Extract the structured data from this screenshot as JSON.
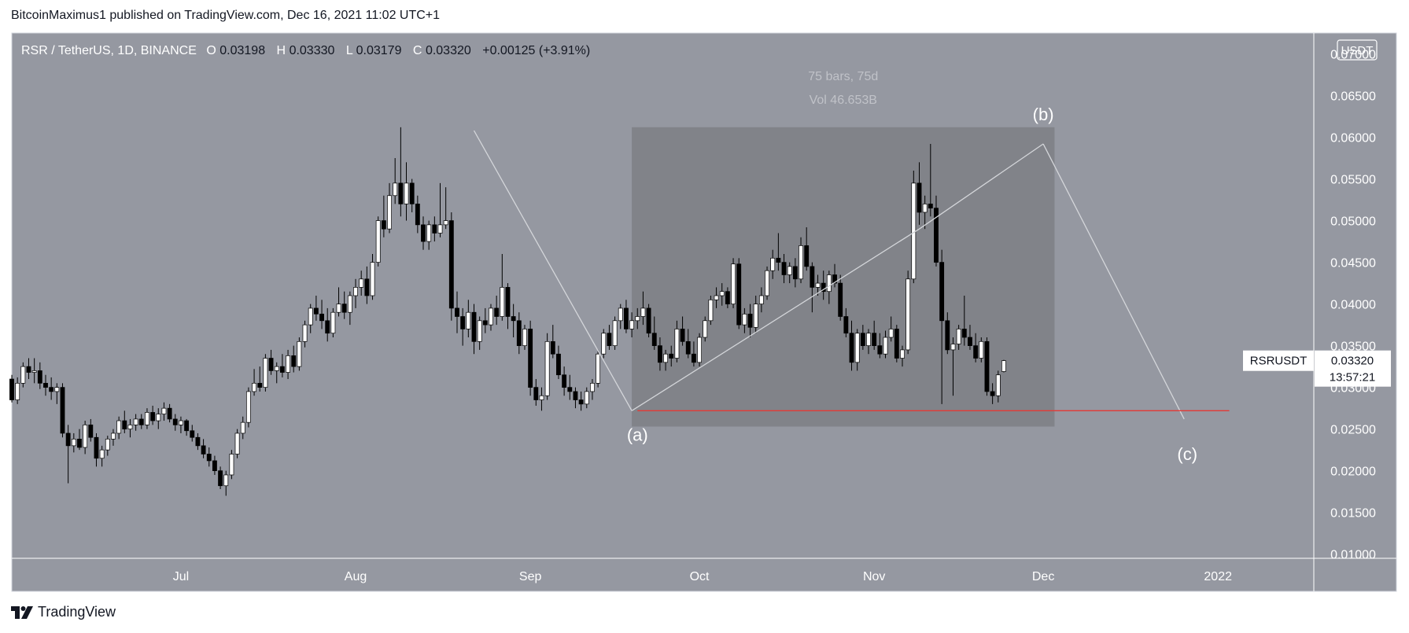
{
  "header": {
    "published": "BitcoinMaximus1 published on TradingView.com, Dec 16, 2021 11:02 UTC+1"
  },
  "legend": {
    "symbol": "RSR / TetherUS, 1D, BINANCE",
    "o_label": "O",
    "o_value": "0.03198",
    "h_label": "H",
    "h_value": "0.03330",
    "l_label": "L",
    "l_value": "0.03179",
    "c_label": "C",
    "c_value": "0.03320",
    "change": "+0.00125 (+3.91%)"
  },
  "currency_badge": "USDT",
  "price_tag": {
    "symbol": "RSRUSDT",
    "price": "0.03320",
    "countdown": "13:57:21"
  },
  "range_box": {
    "bars": "75 bars, 75d",
    "vol": "Vol 46.653B"
  },
  "wave_labels": {
    "a": "(a)",
    "b": "(b)",
    "c": "(c)"
  },
  "footer": {
    "brand": "TradingView"
  },
  "colors": {
    "pane": "#9598a1",
    "box": "#808288",
    "grid_line": "#ffffff",
    "support": "#e53935",
    "candle_up": "#ffffff",
    "candle_down": "#000000"
  },
  "chart_data": {
    "type": "candlestick",
    "title": "RSR / TetherUS, 1D, BINANCE",
    "x_axis": {
      "type": "date",
      "range": [
        "2021-06-01",
        "2022-01-18"
      ],
      "ticks": [
        {
          "date": "2021-07-01",
          "label": "Jul"
        },
        {
          "date": "2021-08-01",
          "label": "Aug"
        },
        {
          "date": "2021-09-01",
          "label": "Sep"
        },
        {
          "date": "2021-10-01",
          "label": "Oct"
        },
        {
          "date": "2021-11-01",
          "label": "Nov"
        },
        {
          "date": "2021-12-01",
          "label": "Dec"
        },
        {
          "date": "2022-01-01",
          "label": "2022"
        }
      ]
    },
    "y_axis": {
      "range": [
        0.0095,
        0.0725
      ],
      "ticks": [
        "0.01000",
        "0.01500",
        "0.02000",
        "0.02500",
        "0.03000",
        "0.03500",
        "0.04000",
        "0.04500",
        "0.05000",
        "0.05500",
        "0.06000",
        "0.06500",
        "0.07000"
      ]
    },
    "support_level": 0.0272,
    "support_range": [
      "2021-09-20",
      "2022-01-03"
    ],
    "range_box": {
      "start": "2021-09-19",
      "end": "2021-12-03",
      "top": 0.0612,
      "bottom": 0.0253
    },
    "wave_lines": [
      {
        "from": {
          "date": "2021-08-22",
          "price": 0.0608
        },
        "to": {
          "date": "2021-09-19",
          "price": 0.0272
        }
      },
      {
        "from": {
          "date": "2021-09-19",
          "price": 0.0272
        },
        "to": {
          "date": "2021-11-09",
          "price": 0.049
        }
      },
      {
        "from": {
          "date": "2021-11-09",
          "price": 0.049
        },
        "to": {
          "date": "2021-12-01",
          "price": 0.0592
        }
      },
      {
        "from": {
          "date": "2021-12-01",
          "price": 0.0592
        },
        "to": {
          "date": "2021-12-26",
          "price": 0.0262
        }
      }
    ],
    "wave_points": [
      {
        "label": "(a)",
        "date": "2021-09-20",
        "price": 0.0272
      },
      {
        "label": "(b)",
        "date": "2021-12-01",
        "price": 0.0592
      },
      {
        "label": "(c)",
        "date": "2021-12-26",
        "price": 0.0262
      }
    ],
    "last_price": 0.0332,
    "candle_start": "2021-06-01",
    "candles": [
      [
        0.031,
        0.0315,
        0.0282,
        0.0285
      ],
      [
        0.0285,
        0.0312,
        0.028,
        0.0305
      ],
      [
        0.0305,
        0.033,
        0.03,
        0.0325
      ],
      [
        0.0325,
        0.0335,
        0.031,
        0.0318
      ],
      [
        0.0318,
        0.0335,
        0.0305,
        0.032
      ],
      [
        0.032,
        0.033,
        0.0298,
        0.0305
      ],
      [
        0.0305,
        0.0315,
        0.029,
        0.03
      ],
      [
        0.03,
        0.0312,
        0.0285,
        0.0295
      ],
      [
        0.0295,
        0.0305,
        0.028,
        0.03
      ],
      [
        0.03,
        0.0305,
        0.024,
        0.0245
      ],
      [
        0.0245,
        0.0255,
        0.0185,
        0.023
      ],
      [
        0.023,
        0.0245,
        0.0222,
        0.0238
      ],
      [
        0.0238,
        0.025,
        0.0225,
        0.0228
      ],
      [
        0.0228,
        0.026,
        0.022,
        0.0255
      ],
      [
        0.0255,
        0.0262,
        0.0235,
        0.024
      ],
      [
        0.024,
        0.0245,
        0.0205,
        0.0215
      ],
      [
        0.0215,
        0.023,
        0.0205,
        0.0225
      ],
      [
        0.0225,
        0.0242,
        0.0218,
        0.0238
      ],
      [
        0.0238,
        0.025,
        0.023,
        0.0245
      ],
      [
        0.0245,
        0.0265,
        0.0238,
        0.026
      ],
      [
        0.026,
        0.0272,
        0.0245,
        0.025
      ],
      [
        0.025,
        0.0262,
        0.024,
        0.0255
      ],
      [
        0.0255,
        0.0268,
        0.0248,
        0.0262
      ],
      [
        0.0262,
        0.0268,
        0.025,
        0.0255
      ],
      [
        0.0255,
        0.0275,
        0.025,
        0.027
      ],
      [
        0.027,
        0.0278,
        0.0255,
        0.026
      ],
      [
        0.026,
        0.0275,
        0.025,
        0.0268
      ],
      [
        0.0268,
        0.0282,
        0.026,
        0.0275
      ],
      [
        0.0275,
        0.028,
        0.0258,
        0.0262
      ],
      [
        0.0262,
        0.0268,
        0.0248,
        0.0255
      ],
      [
        0.0255,
        0.0265,
        0.0245,
        0.026
      ],
      [
        0.026,
        0.0262,
        0.0242,
        0.0248
      ],
      [
        0.0248,
        0.0255,
        0.0235,
        0.024
      ],
      [
        0.024,
        0.0245,
        0.0225,
        0.023
      ],
      [
        0.023,
        0.0238,
        0.0215,
        0.022
      ],
      [
        0.022,
        0.0228,
        0.0205,
        0.0212
      ],
      [
        0.0212,
        0.0218,
        0.0195,
        0.02
      ],
      [
        0.02,
        0.0205,
        0.0178,
        0.0182
      ],
      [
        0.0182,
        0.02,
        0.017,
        0.0195
      ],
      [
        0.0195,
        0.0225,
        0.019,
        0.022
      ],
      [
        0.022,
        0.025,
        0.0215,
        0.0245
      ],
      [
        0.0245,
        0.0265,
        0.0238,
        0.0258
      ],
      [
        0.0258,
        0.03,
        0.0252,
        0.0295
      ],
      [
        0.0295,
        0.0322,
        0.029,
        0.0305
      ],
      [
        0.0305,
        0.0325,
        0.0295,
        0.03
      ],
      [
        0.03,
        0.034,
        0.0295,
        0.0335
      ],
      [
        0.0335,
        0.0345,
        0.0315,
        0.032
      ],
      [
        0.032,
        0.033,
        0.0305,
        0.0325
      ],
      [
        0.0325,
        0.034,
        0.0312,
        0.0318
      ],
      [
        0.0318,
        0.0345,
        0.031,
        0.0338
      ],
      [
        0.0338,
        0.035,
        0.0318,
        0.0325
      ],
      [
        0.0325,
        0.036,
        0.032,
        0.0355
      ],
      [
        0.0355,
        0.038,
        0.0348,
        0.0375
      ],
      [
        0.0375,
        0.04,
        0.0365,
        0.0395
      ],
      [
        0.0395,
        0.041,
        0.038,
        0.0388
      ],
      [
        0.0388,
        0.0405,
        0.037,
        0.038
      ],
      [
        0.038,
        0.0395,
        0.0355,
        0.0365
      ],
      [
        0.0365,
        0.0395,
        0.036,
        0.039
      ],
      [
        0.039,
        0.042,
        0.0385,
        0.04
      ],
      [
        0.04,
        0.0415,
        0.0382,
        0.039
      ],
      [
        0.039,
        0.0415,
        0.0375,
        0.041
      ],
      [
        0.041,
        0.043,
        0.0395,
        0.042
      ],
      [
        0.042,
        0.044,
        0.041,
        0.043
      ],
      [
        0.043,
        0.0445,
        0.04,
        0.041
      ],
      [
        0.041,
        0.046,
        0.0405,
        0.045
      ],
      [
        0.045,
        0.0505,
        0.0445,
        0.05
      ],
      [
        0.05,
        0.053,
        0.048,
        0.049
      ],
      [
        0.049,
        0.0545,
        0.0485,
        0.053
      ],
      [
        0.053,
        0.0575,
        0.052,
        0.0545
      ],
      [
        0.0545,
        0.0612,
        0.0505,
        0.052
      ],
      [
        0.052,
        0.057,
        0.05,
        0.0545
      ],
      [
        0.0545,
        0.055,
        0.051,
        0.052
      ],
      [
        0.052,
        0.053,
        0.0485,
        0.0495
      ],
      [
        0.0495,
        0.0505,
        0.0465,
        0.0475
      ],
      [
        0.0475,
        0.05,
        0.0465,
        0.0495
      ],
      [
        0.0495,
        0.0505,
        0.0475,
        0.0485
      ],
      [
        0.0485,
        0.0545,
        0.048,
        0.0495
      ],
      [
        0.0495,
        0.054,
        0.049,
        0.05
      ],
      [
        0.05,
        0.051,
        0.038,
        0.0395
      ],
      [
        0.0395,
        0.0415,
        0.0365,
        0.0385
      ],
      [
        0.0385,
        0.0395,
        0.035,
        0.037
      ],
      [
        0.037,
        0.0405,
        0.036,
        0.039
      ],
      [
        0.039,
        0.04,
        0.034,
        0.0355
      ],
      [
        0.0355,
        0.0385,
        0.0345,
        0.038
      ],
      [
        0.038,
        0.0395,
        0.0365,
        0.0375
      ],
      [
        0.0375,
        0.04,
        0.0368,
        0.0395
      ],
      [
        0.0395,
        0.041,
        0.0375,
        0.0385
      ],
      [
        0.0385,
        0.046,
        0.038,
        0.042
      ],
      [
        0.042,
        0.0425,
        0.037,
        0.0385
      ],
      [
        0.0385,
        0.04,
        0.036,
        0.038
      ],
      [
        0.038,
        0.039,
        0.034,
        0.035
      ],
      [
        0.035,
        0.0375,
        0.0345,
        0.037
      ],
      [
        0.037,
        0.038,
        0.029,
        0.03
      ],
      [
        0.03,
        0.031,
        0.0278,
        0.0285
      ],
      [
        0.0285,
        0.03,
        0.0272,
        0.029
      ],
      [
        0.029,
        0.0365,
        0.0285,
        0.0355
      ],
      [
        0.0355,
        0.0375,
        0.0335,
        0.034
      ],
      [
        0.034,
        0.035,
        0.031,
        0.0315
      ],
      [
        0.0315,
        0.0325,
        0.029,
        0.03
      ],
      [
        0.03,
        0.0315,
        0.0285,
        0.0295
      ],
      [
        0.0295,
        0.03,
        0.0275,
        0.0285
      ],
      [
        0.0285,
        0.0295,
        0.0272,
        0.028
      ],
      [
        0.028,
        0.03,
        0.0275,
        0.0295
      ],
      [
        0.0295,
        0.031,
        0.0285,
        0.0305
      ],
      [
        0.0305,
        0.0345,
        0.03,
        0.034
      ],
      [
        0.034,
        0.037,
        0.0335,
        0.0365
      ],
      [
        0.0365,
        0.0375,
        0.0345,
        0.035
      ],
      [
        0.035,
        0.0385,
        0.0345,
        0.038
      ],
      [
        0.038,
        0.04,
        0.037,
        0.0395
      ],
      [
        0.0395,
        0.0405,
        0.0365,
        0.037
      ],
      [
        0.037,
        0.039,
        0.036,
        0.038
      ],
      [
        0.038,
        0.0395,
        0.037,
        0.0385
      ],
      [
        0.0385,
        0.0415,
        0.0375,
        0.0395
      ],
      [
        0.0395,
        0.04,
        0.036,
        0.0365
      ],
      [
        0.0365,
        0.0385,
        0.0345,
        0.035
      ],
      [
        0.035,
        0.036,
        0.032,
        0.033
      ],
      [
        0.033,
        0.0345,
        0.032,
        0.034
      ],
      [
        0.034,
        0.035,
        0.0325,
        0.0335
      ],
      [
        0.0335,
        0.038,
        0.033,
        0.037
      ],
      [
        0.037,
        0.0385,
        0.035,
        0.0355
      ],
      [
        0.0355,
        0.037,
        0.0335,
        0.034
      ],
      [
        0.034,
        0.0355,
        0.0325,
        0.033
      ],
      [
        0.033,
        0.0365,
        0.0325,
        0.036
      ],
      [
        0.036,
        0.0385,
        0.0355,
        0.038
      ],
      [
        0.038,
        0.041,
        0.0375,
        0.0405
      ],
      [
        0.0405,
        0.042,
        0.0395,
        0.041
      ],
      [
        0.041,
        0.0425,
        0.0398,
        0.0415
      ],
      [
        0.0415,
        0.042,
        0.0395,
        0.04
      ],
      [
        0.04,
        0.0455,
        0.0395,
        0.0448
      ],
      [
        0.0448,
        0.0455,
        0.037,
        0.0375
      ],
      [
        0.0375,
        0.0395,
        0.0365,
        0.0388
      ],
      [
        0.0388,
        0.04,
        0.036,
        0.0372
      ],
      [
        0.0372,
        0.041,
        0.0365,
        0.04
      ],
      [
        0.04,
        0.042,
        0.039,
        0.041
      ],
      [
        0.041,
        0.0445,
        0.0405,
        0.044
      ],
      [
        0.044,
        0.0465,
        0.043,
        0.0455
      ],
      [
        0.0455,
        0.0485,
        0.044,
        0.045
      ],
      [
        0.045,
        0.046,
        0.0425,
        0.0435
      ],
      [
        0.0435,
        0.045,
        0.0425,
        0.0445
      ],
      [
        0.0445,
        0.0455,
        0.042,
        0.043
      ],
      [
        0.043,
        0.048,
        0.0425,
        0.047
      ],
      [
        0.047,
        0.0492,
        0.044,
        0.0445
      ],
      [
        0.0445,
        0.045,
        0.039,
        0.042
      ],
      [
        0.042,
        0.0435,
        0.041,
        0.0425
      ],
      [
        0.0425,
        0.044,
        0.0405,
        0.0415
      ],
      [
        0.0415,
        0.044,
        0.04,
        0.0435
      ],
      [
        0.0435,
        0.0448,
        0.042,
        0.0425
      ],
      [
        0.0425,
        0.0435,
        0.038,
        0.0385
      ],
      [
        0.0385,
        0.0395,
        0.036,
        0.0365
      ],
      [
        0.0365,
        0.038,
        0.032,
        0.033
      ],
      [
        0.033,
        0.037,
        0.032,
        0.0365
      ],
      [
        0.0365,
        0.0375,
        0.0345,
        0.035
      ],
      [
        0.035,
        0.037,
        0.034,
        0.0365
      ],
      [
        0.0365,
        0.038,
        0.0345,
        0.035
      ],
      [
        0.035,
        0.0365,
        0.0335,
        0.034
      ],
      [
        0.034,
        0.0368,
        0.0335,
        0.036
      ],
      [
        0.036,
        0.0385,
        0.0355,
        0.037
      ],
      [
        0.037,
        0.0375,
        0.033,
        0.0335
      ],
      [
        0.0335,
        0.035,
        0.0325,
        0.0345
      ],
      [
        0.0345,
        0.044,
        0.034,
        0.043
      ],
      [
        0.043,
        0.056,
        0.0425,
        0.0545
      ],
      [
        0.0545,
        0.057,
        0.0495,
        0.051
      ],
      [
        0.051,
        0.053,
        0.049,
        0.052
      ],
      [
        0.052,
        0.0592,
        0.0505,
        0.0515
      ],
      [
        0.0515,
        0.053,
        0.0445,
        0.045
      ],
      [
        0.045,
        0.0465,
        0.028,
        0.038
      ],
      [
        0.038,
        0.039,
        0.034,
        0.0345
      ],
      [
        0.0345,
        0.036,
        0.029,
        0.0352
      ],
      [
        0.0352,
        0.0375,
        0.0345,
        0.037
      ],
      [
        0.037,
        0.041,
        0.035,
        0.036
      ],
      [
        0.036,
        0.0375,
        0.0345,
        0.035
      ],
      [
        0.035,
        0.0365,
        0.033,
        0.0335
      ],
      [
        0.0335,
        0.036,
        0.033,
        0.0355
      ],
      [
        0.0355,
        0.036,
        0.029,
        0.0295
      ],
      [
        0.0295,
        0.0305,
        0.028,
        0.029
      ],
      [
        0.029,
        0.032,
        0.0282,
        0.0315
      ],
      [
        0.0319,
        0.0333,
        0.0318,
        0.0332
      ]
    ]
  }
}
